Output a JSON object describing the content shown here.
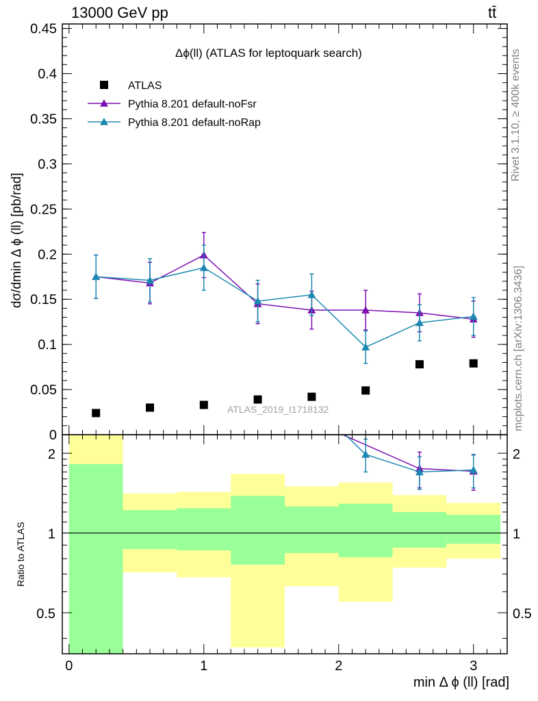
{
  "header": {
    "energy_label": "13000 GeV pp",
    "process_label": "tt̄"
  },
  "side_labels": {
    "rivet": "Rivet 3.1.10, ≥ 400k events",
    "mcplots": "mcplots.cern.ch [arXiv:1306.3436]"
  },
  "chart_data": [
    {
      "type": "scatter",
      "title": "Δϕ(ll) (ATLAS for leptoquark search)",
      "watermark": "ATLAS_2019_I1718132",
      "ylabel": "dσ/dmin Δ ϕ (ll) [pb/rad]",
      "xlabel": "",
      "xlim": [
        -0.05,
        3.25
      ],
      "ylim": [
        0,
        0.455
      ],
      "y_ticks": [
        0,
        0.05,
        0.1,
        0.15,
        0.2,
        0.25,
        0.3,
        0.35,
        0.4,
        0.45
      ],
      "y_tick_labels": [
        "0",
        "0.05",
        "0.1",
        "0.15",
        "0.2",
        "0.25",
        "0.3",
        "0.35",
        "0.4",
        "0.45"
      ],
      "legend_position": "top-left",
      "x": [
        0.2,
        0.6,
        1.0,
        1.4,
        1.8,
        2.2,
        2.6,
        3.0
      ],
      "series": [
        {
          "name": "ATLAS",
          "color": "#000000",
          "marker": "square",
          "values": [
            0.024,
            0.03,
            0.033,
            0.039,
            0.042,
            0.049,
            0.078,
            0.079
          ]
        },
        {
          "name": "Pythia 8.201 default-noFsr",
          "color": "#7b0fb1",
          "marker": "triangle",
          "values": [
            0.175,
            0.168,
            0.199,
            0.145,
            0.138,
            0.138,
            0.135,
            0.128
          ],
          "errors": [
            0.024,
            0.023,
            0.025,
            0.022,
            0.021,
            0.022,
            0.021,
            0.02
          ]
        },
        {
          "name": "Pythia 8.201 default-noRap",
          "color": "#1a88b0",
          "marker": "triangle",
          "values": [
            0.175,
            0.171,
            0.185,
            0.148,
            0.155,
            0.097,
            0.124,
            0.131
          ],
          "errors": [
            0.024,
            0.024,
            0.025,
            0.023,
            0.023,
            0.018,
            0.02,
            0.021
          ]
        }
      ]
    },
    {
      "type": "line",
      "ylabel": "Ratio to ATLAS",
      "xlabel": "min Δ ϕ (ll) [rad]",
      "xlim": [
        -0.05,
        3.25
      ],
      "ylim": [
        0.35,
        2.35
      ],
      "y_ticks": [
        0.5,
        1,
        2
      ],
      "y_tick_labels": [
        "0.5",
        "1",
        "2"
      ],
      "x_ticks": [
        0,
        1,
        2,
        3
      ],
      "x_tick_labels": [
        "0",
        "1",
        "2",
        "3"
      ],
      "bands": [
        {
          "x0": 0.0,
          "x1": 0.4,
          "inner": [
            0.35,
            1.82
          ],
          "outer": [
            0.35,
            2.35
          ]
        },
        {
          "x0": 0.4,
          "x1": 0.8,
          "inner": [
            0.87,
            1.22
          ],
          "outer": [
            0.71,
            1.41
          ]
        },
        {
          "x0": 0.8,
          "x1": 1.2,
          "inner": [
            0.86,
            1.24
          ],
          "outer": [
            0.68,
            1.43
          ]
        },
        {
          "x0": 1.2,
          "x1": 1.6,
          "inner": [
            0.76,
            1.38
          ],
          "outer": [
            0.37,
            1.67
          ]
        },
        {
          "x0": 1.6,
          "x1": 2.0,
          "inner": [
            0.84,
            1.26
          ],
          "outer": [
            0.63,
            1.5
          ]
        },
        {
          "x0": 2.0,
          "x1": 2.4,
          "inner": [
            0.81,
            1.29
          ],
          "outer": [
            0.55,
            1.55
          ]
        },
        {
          "x0": 2.4,
          "x1": 2.8,
          "inner": [
            0.88,
            1.2
          ],
          "outer": [
            0.74,
            1.39
          ]
        },
        {
          "x0": 2.8,
          "x1": 3.2,
          "inner": [
            0.91,
            1.17
          ],
          "outer": [
            0.8,
            1.3
          ]
        }
      ],
      "series": [
        {
          "name": "Pythia 8.201 default-noFsr",
          "color": "#7b0fb1",
          "x": [
            2.03,
            2.6,
            3.0
          ],
          "values": [
            2.35,
            1.75,
            1.71
          ],
          "errors": [
            null,
            0.27,
            0.26
          ],
          "markers": [
            false,
            true,
            true
          ]
        },
        {
          "name": "Pythia 8.201 default-noRap",
          "color": "#1a88b0",
          "x": [
            2.05,
            2.2,
            2.6,
            3.0
          ],
          "values": [
            2.35,
            1.98,
            1.7,
            1.73
          ],
          "errors": [
            null,
            0.28,
            0.24,
            0.25
          ],
          "markers": [
            false,
            true,
            true,
            true
          ]
        }
      ]
    }
  ]
}
